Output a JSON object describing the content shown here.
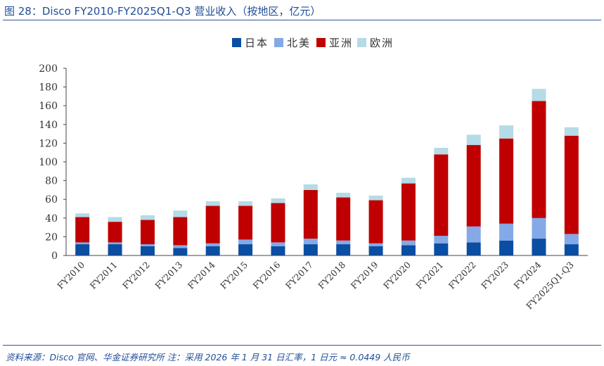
{
  "header": {
    "title": "图 28：Disco FY2010-FY2025Q1-Q3 营业收入（按地区，亿元）"
  },
  "footer": {
    "source": "资料来源：Disco 官网、华金证券研究所 注：采用 2026 年 1 月 31 日汇率，1 日元 ≈ 0.0449 人民币"
  },
  "chart_data": {
    "type": "bar",
    "stacked": true,
    "title": "",
    "xlabel": "",
    "ylabel": "",
    "ylim": [
      0,
      200
    ],
    "yticks": [
      0,
      20,
      40,
      60,
      80,
      100,
      120,
      140,
      160,
      180,
      200
    ],
    "grid": false,
    "legend_position": "top-center",
    "categories": [
      "FY2010",
      "FY2011",
      "FY2012",
      "FY2013",
      "FY2014",
      "FY2015",
      "FY2016",
      "FY2017",
      "FY2018",
      "FY2019",
      "FY2020",
      "FY2021",
      "FY2022",
      "FY2023",
      "FY2024",
      "FY2025Q1-Q3"
    ],
    "series": [
      {
        "name": "日本",
        "color": "#0a4ea3",
        "values": [
          12,
          12,
          10,
          8,
          10,
          12,
          10,
          12,
          12,
          10,
          11,
          13,
          14,
          16,
          18,
          12
        ]
      },
      {
        "name": "北美",
        "color": "#84a9e6",
        "values": [
          2,
          2,
          2,
          3,
          3,
          5,
          4,
          6,
          4,
          3,
          5,
          8,
          17,
          18,
          22,
          11
        ]
      },
      {
        "name": "亚洲",
        "color": "#c00000",
        "values": [
          27,
          22,
          26,
          30,
          40,
          36,
          42,
          52,
          46,
          46,
          61,
          87,
          87,
          91,
          125,
          105
        ]
      },
      {
        "name": "欧洲",
        "color": "#b4dbe6",
        "values": [
          4,
          5,
          5,
          7,
          5,
          5,
          5,
          6,
          5,
          5,
          6,
          7,
          11,
          14,
          13,
          9
        ]
      }
    ]
  }
}
